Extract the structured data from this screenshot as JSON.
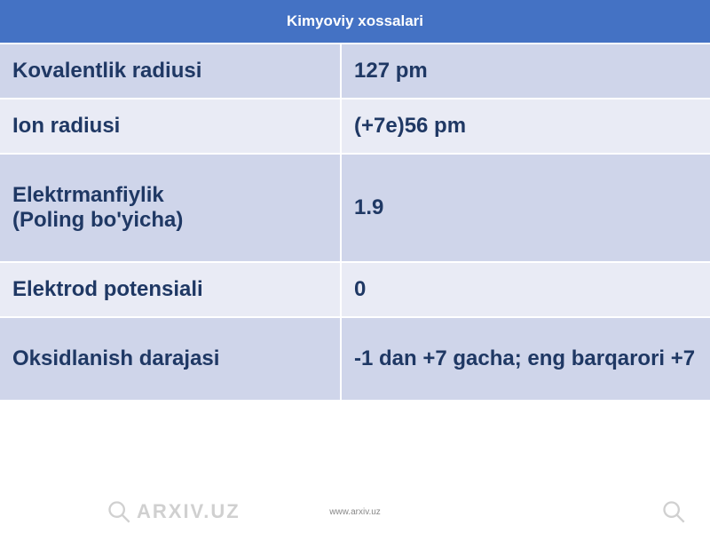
{
  "table": {
    "header": "Kimyoviy xossalari",
    "header_bg": "#4472c4",
    "header_color": "#ffffff",
    "rows": [
      {
        "label": "Kovalentlik radiusi",
        "value": "127 pm",
        "tall": false
      },
      {
        "label": "Ion radiusi",
        "value": "(+7e)56 pm",
        "tall": false
      },
      {
        "label": "Elektrmanfiylik\n(Poling bo'yicha)",
        "value": "1.9",
        "tall": true
      },
      {
        "label": "Elektrod potensiali",
        "value": "0",
        "tall": false
      },
      {
        "label": "Oksidlanish darajasi",
        "value": "-1 dan +7 gacha; eng barqarori +7",
        "tall": true
      }
    ],
    "row_bg_odd": "#cfd5ea",
    "row_bg_even": "#e9ebf5",
    "text_color": "#1f3864",
    "border_color": "#ffffff"
  },
  "watermark": {
    "text": "ARXIV.UZ",
    "color": "#d0d0d0"
  },
  "footer": "www.arxiv.uz"
}
